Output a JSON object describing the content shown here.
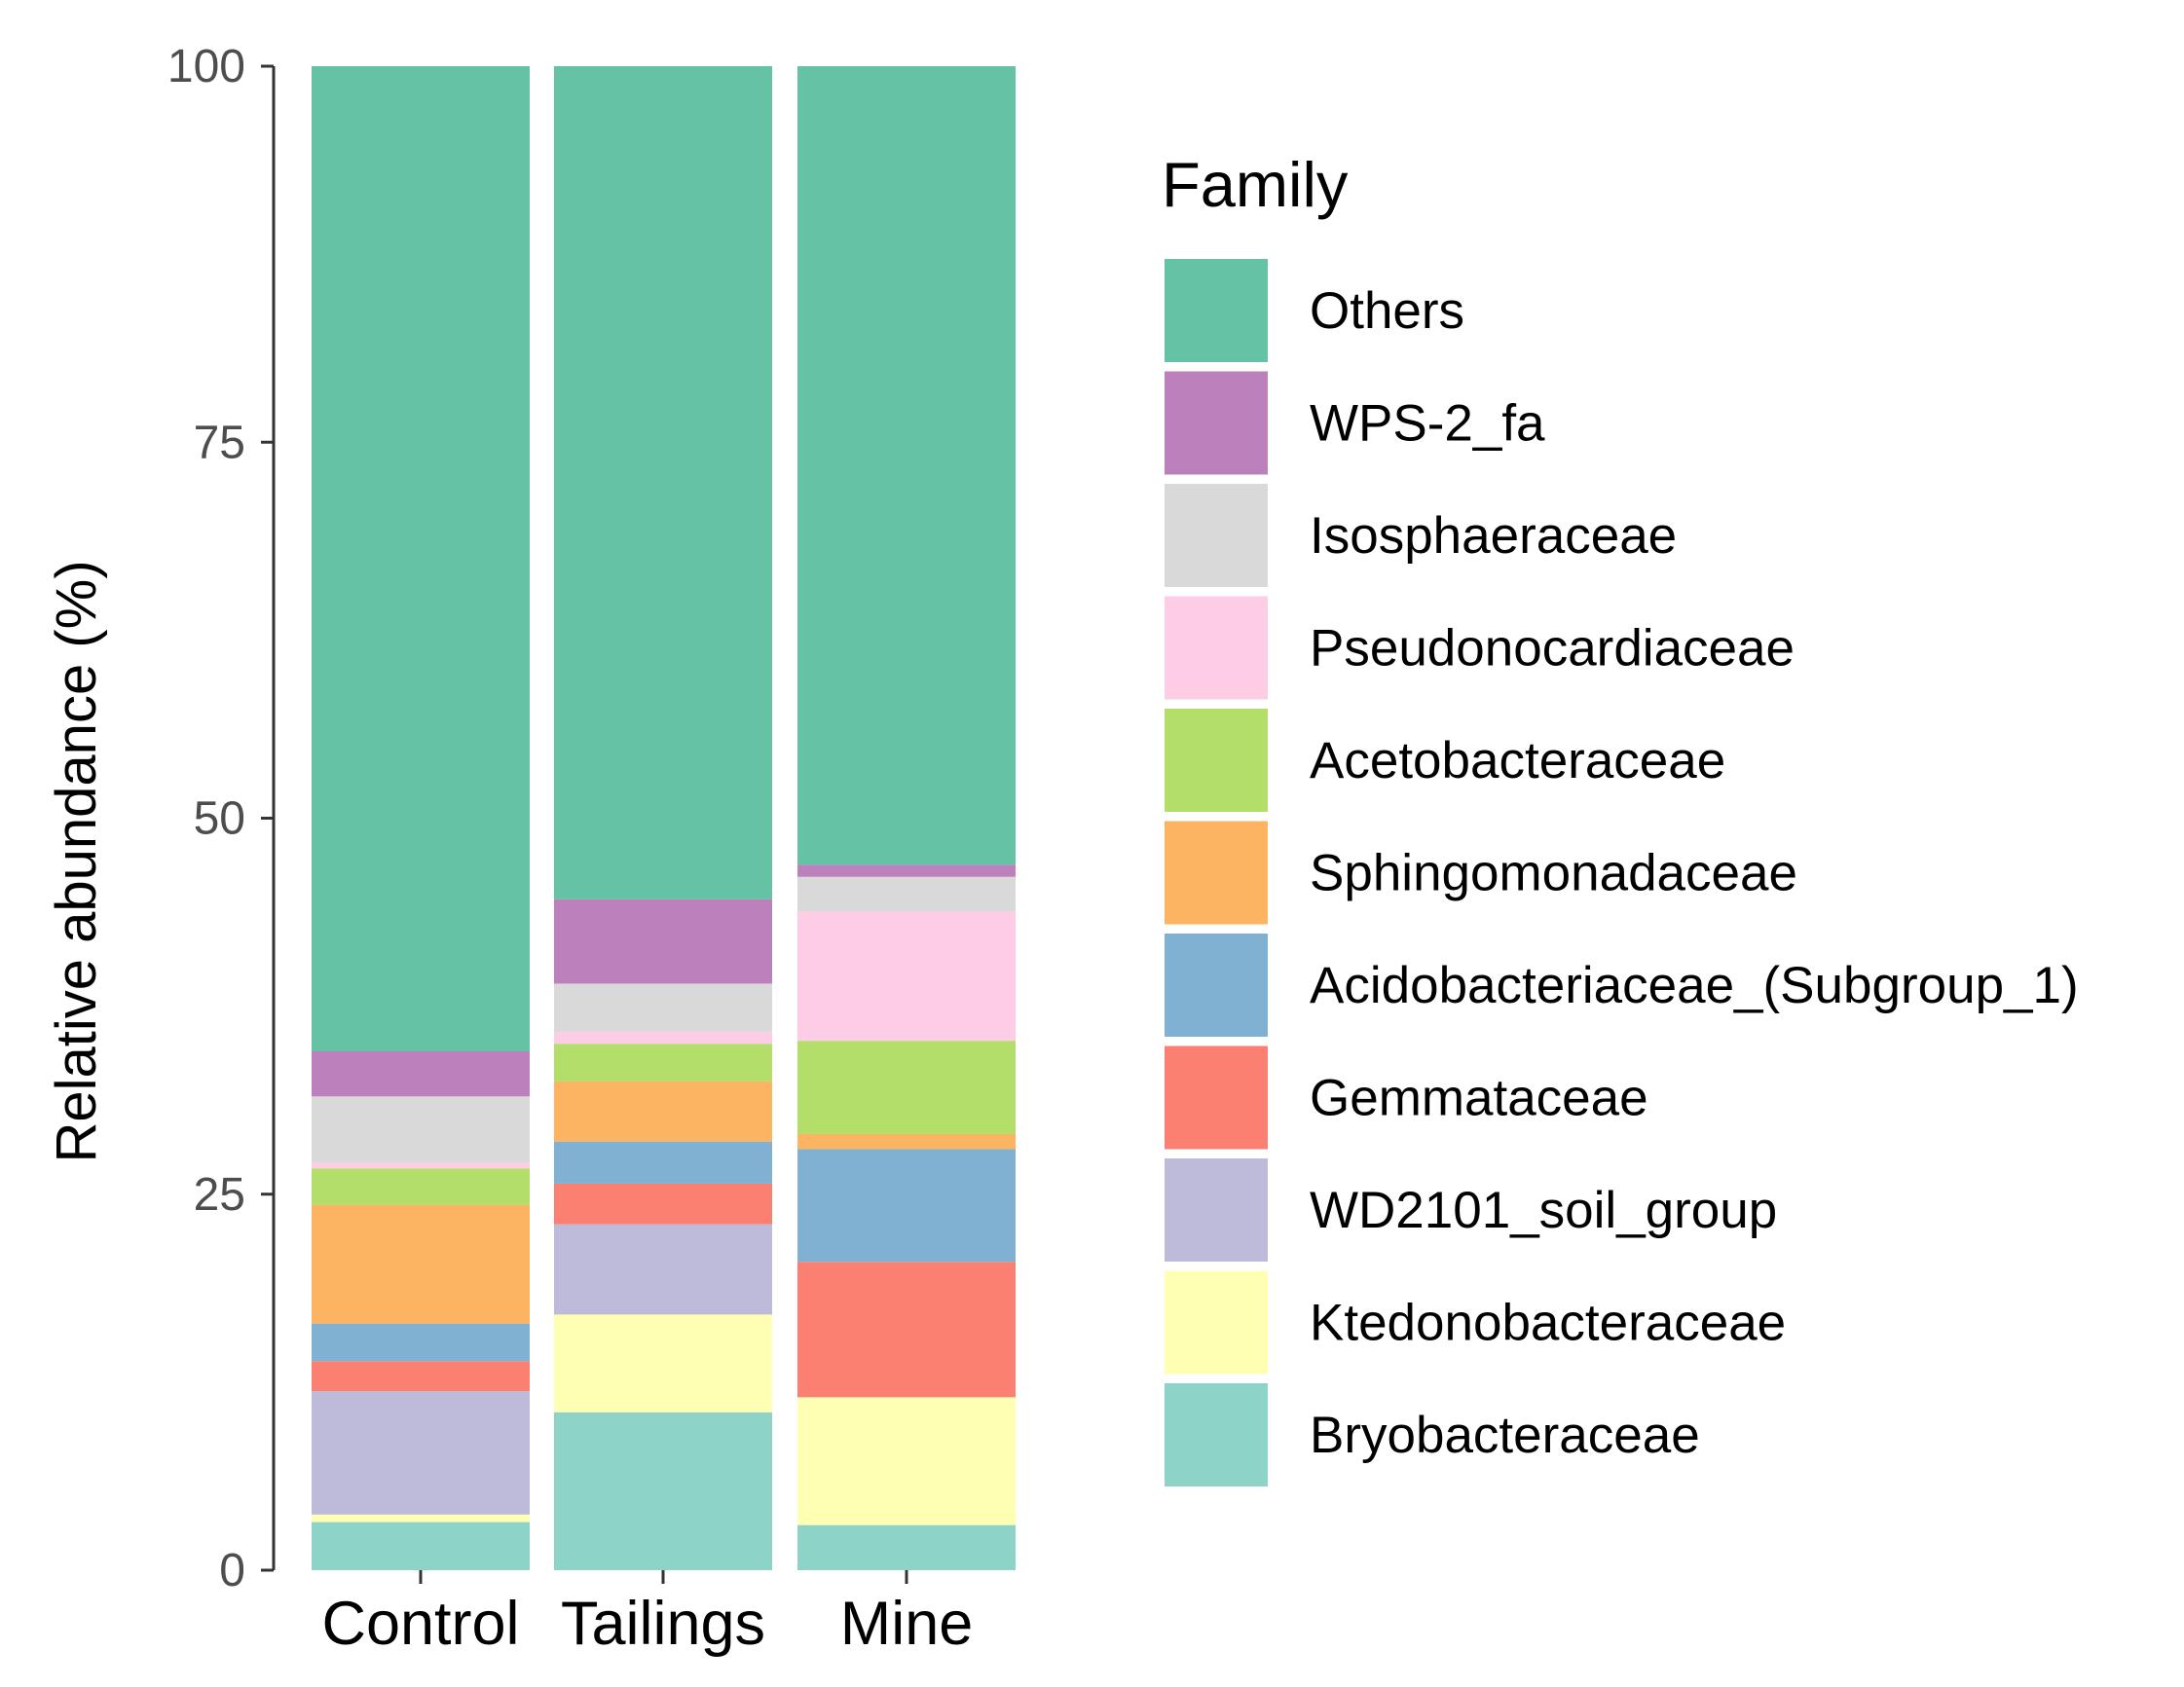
{
  "chart_data": {
    "type": "bar",
    "stacked": true,
    "categories": [
      "Control",
      "Tailings",
      "Mine"
    ],
    "ylabel": "Relative abundance (%)",
    "xlabel": "",
    "ylim": [
      0,
      100
    ],
    "yticks": [
      0,
      25,
      50,
      75,
      100
    ],
    "legend_title": "Family",
    "legend_position": "right",
    "series": [
      {
        "name": "Bryobacteraceae",
        "color": "#8DD3C7",
        "values": [
          3.2,
          10.5,
          3.0
        ]
      },
      {
        "name": "Ktedonobacteraceae",
        "color": "#FFFFB3",
        "values": [
          0.5,
          6.5,
          8.5
        ]
      },
      {
        "name": "WD2101_soil_group",
        "color": "#BEBADA",
        "values": [
          8.2,
          6.0,
          0.0
        ]
      },
      {
        "name": "Gemmataceae",
        "color": "#FB8072",
        "values": [
          2.0,
          2.7,
          9.0
        ]
      },
      {
        "name": "Acidobacteriaceae_(Subgroup_1)",
        "color": "#80B1D3",
        "values": [
          2.5,
          2.8,
          7.5
        ]
      },
      {
        "name": "Sphingomonadaceae",
        "color": "#FDB462",
        "values": [
          7.9,
          4.0,
          1.0
        ]
      },
      {
        "name": "Acetobacteraceae",
        "color": "#B3DE69",
        "values": [
          2.4,
          2.5,
          6.2
        ]
      },
      {
        "name": "Pseudonocardiaceae",
        "color": "#FCCDE5",
        "values": [
          0.4,
          0.8,
          8.6
        ]
      },
      {
        "name": "Isosphaeraceae",
        "color": "#D9D9D9",
        "values": [
          4.4,
          3.2,
          2.3
        ]
      },
      {
        "name": "WPS-2_fa",
        "color": "#BC80BD",
        "values": [
          3.0,
          5.6,
          0.8
        ]
      },
      {
        "name": "Others",
        "color": "#66C2A5",
        "values": [
          65.5,
          55.4,
          53.1
        ]
      }
    ],
    "legend_order": [
      "Others",
      "WPS-2_fa",
      "Isosphaeraceae",
      "Pseudonocardiaceae",
      "Acetobacteraceae",
      "Sphingomonadaceae",
      "Acidobacteriaceae_(Subgroup_1)",
      "Gemmataceae",
      "WD2101_soil_group",
      "Ktedonobacteraceae",
      "Bryobacteraceae"
    ]
  }
}
